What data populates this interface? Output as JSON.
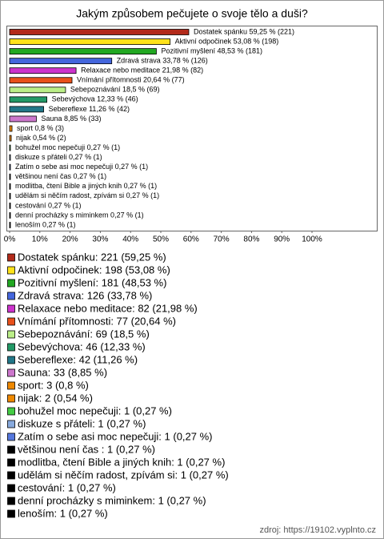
{
  "chart_data": {
    "type": "bar",
    "orientation": "horizontal",
    "title": "Jakým způsobem pečujete o svoje tělo a duši?",
    "values": [
      59.25,
      53.08,
      48.53,
      33.78,
      21.98,
      20.64,
      18.5,
      12.33,
      11.26,
      8.85,
      0.8,
      0.54,
      0.27,
      0.27,
      0.27,
      0.27,
      0.27,
      0.27,
      0.27,
      0.27,
      0.27
    ],
    "value_labels": [
      "Dostatek spánku 59,25 % (221)",
      "Aktivní odpočinek 53,08 % (198)",
      "Pozitivní myšlení 48,53 % (181)",
      "Zdravá strava 33,78 % (126)",
      "Relaxace nebo meditace 21,98 % (82)",
      "Vnímání přítomnosti 20,64 % (77)",
      "Sebepoznávání 18,5 % (69)",
      "Sebevýchova 12,33 % (46)",
      "Sebereflexe 11,26 % (42)",
      "Sauna 8,85 % (33)",
      "sport 0,8 % (3)",
      "nijak 0,54 % (2)",
      "bohužel  moc nepečuji 0,27 % (1)",
      "diskuze s přáteli 0,27 % (1)",
      "Zatím o sebe asi moc nepečuji 0,27 % (1)",
      "většinou není čas  0,27 % (1)",
      "modlitba, čtení Bible a jiných knih 0,27 % (1)",
      "udělám si něčím radost, zpívám si 0,27 % (1)",
      "cestování 0,27 % (1)",
      "denní procházky s miminkem 0,27 % (1)",
      "lenoším 0,27 % (1)"
    ],
    "colors": [
      "#b22a1a",
      "#ffe21a",
      "#22a822",
      "#4466dd",
      "#cc33cc",
      "#e8501a",
      "#bbee88",
      "#229966",
      "#227788",
      "#cc77cc",
      "#ee8800",
      "#ee8800",
      "#44cc44",
      "#88aadd",
      "#5577dd",
      "#000000",
      "#000000",
      "#000000",
      "#000000",
      "#000000",
      "#000000"
    ],
    "legend_labels": [
      "Dostatek spánku: 221 (59,25 %)",
      "Aktivní odpočinek: 198 (53,08 %)",
      "Pozitivní myšlení: 181 (48,53 %)",
      "Zdravá strava: 126 (33,78 %)",
      "Relaxace nebo meditace: 82 (21,98 %)",
      "Vnímání přítomnosti: 77 (20,64 %)",
      "Sebepoznávání: 69 (18,5 %)",
      "Sebevýchova: 46 (12,33 %)",
      "Sebereflexe: 42 (11,26 %)",
      "Sauna: 33 (8,85 %)",
      "sport: 3 (0,8 %)",
      "nijak: 2 (0,54 %)",
      "bohužel  moc nepečuji: 1 (0,27 %)",
      "diskuze s přáteli: 1 (0,27 %)",
      "Zatím o sebe asi moc nepečuji: 1 (0,27 %)",
      "většinou není čas : 1 (0,27 %)",
      "modlitba, čtení Bible a jiných knih: 1 (0,27 %)",
      "udělám si něčím radost, zpívám si: 1 (0,27 %)",
      "cestování: 1 (0,27 %)",
      "denní procházky s miminkem: 1 (0,27 %)",
      "lenoším: 1 (0,27 %)"
    ],
    "xlim": [
      0,
      100
    ],
    "xticks": [
      {
        "value": 0,
        "label": "0%"
      },
      {
        "value": 10,
        "label": "10%"
      },
      {
        "value": 20,
        "label": "20%"
      },
      {
        "value": 30,
        "label": "30%"
      },
      {
        "value": 40,
        "label": "40%"
      },
      {
        "value": 50,
        "label": "50%"
      },
      {
        "value": 60,
        "label": "60%"
      },
      {
        "value": 70,
        "label": "70%"
      },
      {
        "value": 80,
        "label": "80%"
      },
      {
        "value": 90,
        "label": "90%"
      },
      {
        "value": 100,
        "label": "100%"
      }
    ],
    "source": "zdroj: https://19102.vyplnto.cz"
  }
}
